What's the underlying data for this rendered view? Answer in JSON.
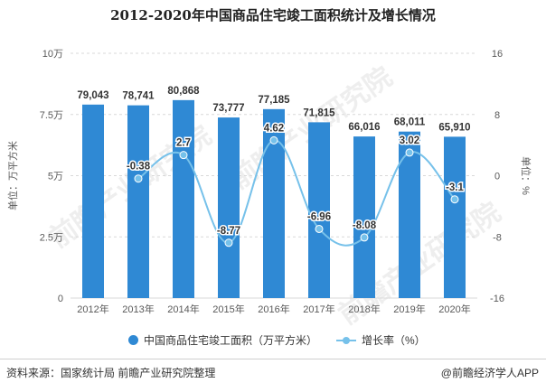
{
  "colors": {
    "bar": "#2f89d4",
    "line": "#76c1ea",
    "grid": "#d9d9d9",
    "axis_text": "#595959",
    "label_text": "#333333",
    "watermark": "#e3e3e3"
  },
  "watermark": {
    "text": "前瞻产业研究院"
  },
  "footer": {
    "source": "资料来源：国家统计局 前瞻产业研究院整理",
    "brand": "@前瞻经济学人APP"
  },
  "legend": {
    "bar_label": "中国商品住宅竣工面积（万平方米）",
    "line_label": "增长率（%）"
  },
  "chart_data": {
    "type": "bar",
    "title": "2012-2020年中国商品住宅竣工面积统计及增长情况",
    "categories": [
      "2012年",
      "2013年",
      "2014年",
      "2015年",
      "2016年",
      "2017年",
      "2018年",
      "2019年",
      "2020年"
    ],
    "series": [
      {
        "name": "中国商品住宅竣工面积（万平方米）",
        "type": "bar",
        "axis": "left",
        "values": [
          79043,
          78741,
          80868,
          73777,
          77185,
          71815,
          66016,
          68011,
          65910
        ],
        "labels": [
          "79,043",
          "78,741",
          "80,868",
          "73,777",
          "77,185",
          "71,815",
          "66,016",
          "68,011",
          "65,910"
        ]
      },
      {
        "name": "增长率（%）",
        "type": "line",
        "axis": "right",
        "values": [
          null,
          -0.38,
          2.7,
          -8.77,
          4.62,
          -6.96,
          -8.08,
          3.02,
          -3.1
        ],
        "labels": [
          "",
          "-0.38",
          "2.7",
          "-8.77",
          "4.62",
          "-6.96",
          "-8.08",
          "3.02",
          "-3.1"
        ]
      }
    ],
    "left_axis": {
      "label": "单位：万平方米",
      "min": 0,
      "max": 100000,
      "ticks": [
        0,
        25000,
        50000,
        75000,
        100000
      ],
      "tick_labels": [
        "0",
        "2.5万",
        "5万",
        "7.5万",
        "10万"
      ]
    },
    "right_axis": {
      "label": "单位：%",
      "min": -16,
      "max": 16,
      "ticks": [
        -16,
        -8,
        0,
        8,
        16
      ],
      "tick_labels": [
        "-16",
        "-8",
        "0",
        "8",
        "16"
      ]
    },
    "grid": true,
    "legend_position": "bottom"
  }
}
